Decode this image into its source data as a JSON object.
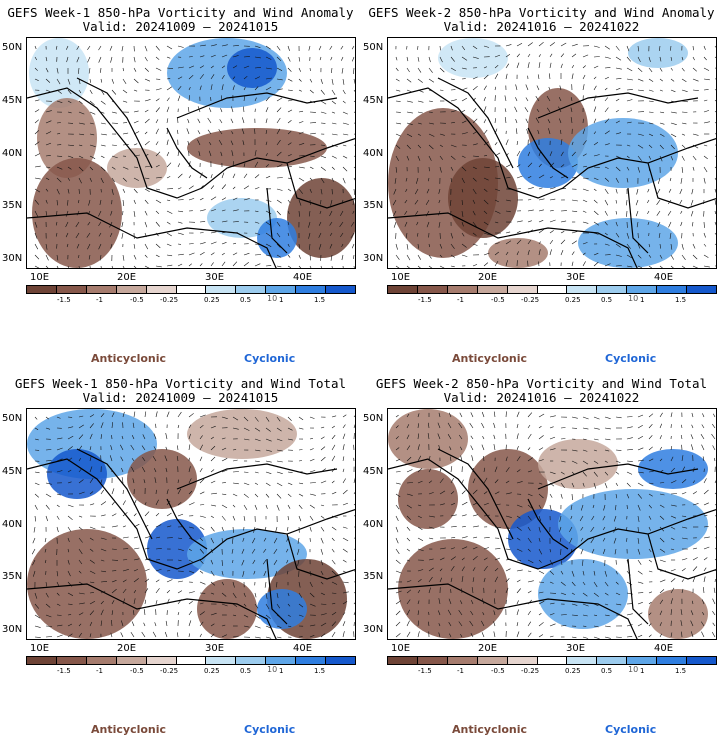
{
  "panels": [
    {
      "title": "GEFS Week-1 850-hPa Vorticity and Wind Anomaly",
      "valid": "Valid: 20241009 – 20241015"
    },
    {
      "title": "GEFS Week-2 850-hPa Vorticity and Wind Anomaly",
      "valid": "Valid: 20241016 – 20241022"
    },
    {
      "title": "GEFS Week-1 850-hPa Vorticity and Wind Total",
      "valid": "Valid: 20241009 – 20241015"
    },
    {
      "title": "GEFS Week-2 850-hPa Vorticity and Wind Total",
      "valid": "Valid: 20241016 – 20241022"
    }
  ],
  "lat_labels": [
    "50N",
    "45N",
    "40N",
    "35N",
    "30N"
  ],
  "lon_labels": [
    "10E",
    "20E",
    "30E",
    "40E"
  ],
  "colorbar": {
    "labels": [
      "-1.5",
      "-1",
      "-0.5",
      "-0.25",
      "0.25",
      "0.5",
      "1",
      "1.5"
    ],
    "unit": "10",
    "colors": [
      "#6e4336",
      "#86574a",
      "#a67c6e",
      "#c6a89c",
      "#e6d5cf",
      "#ffffff",
      "#c8e4f4",
      "#9cccee",
      "#5ea6e8",
      "#2f7ee0",
      "#1558cc"
    ]
  },
  "legend": {
    "anticyclonic": "Anticyclonic",
    "cyclonic": "Cyclonic"
  },
  "colors": {
    "anticyclonic": "#7a4a3a",
    "cyclonic": "#1f66d6",
    "coast": "#000000",
    "arrow": "#111111"
  }
}
